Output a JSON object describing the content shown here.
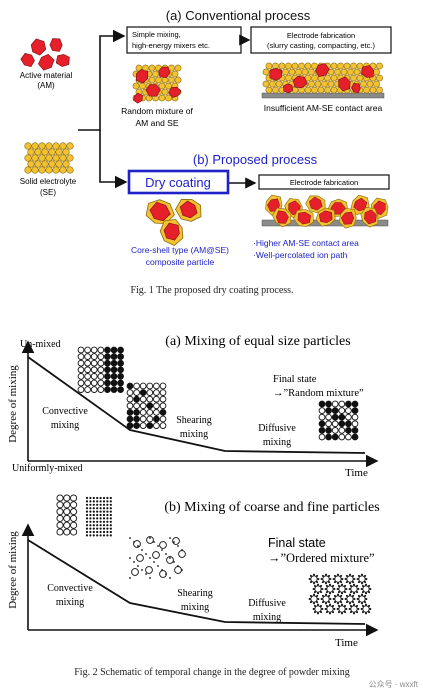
{
  "fig1": {
    "title_a": "(a) Conventional process",
    "title_b": "(b) Proposed process",
    "am_label_1": "Active material",
    "am_label_2": "(AM)",
    "se_label_1": "Solid electrolyte",
    "se_label_2": "(SE)",
    "mix_box_1": "Simple mixing,",
    "mix_box_2": "high-energy mixers etc.",
    "fab_box_1": "Electrode fabrication",
    "fab_box_2": "(slurry casting, compacting, etc.)",
    "random_mix_1": "Random mixture of",
    "random_mix_2": "AM and SE",
    "insufficient": "Insufficient AM-SE contact area",
    "dry_coating": "Dry coating",
    "fab_box_b": "Electrode fabrication",
    "coreshell_1": "Core-shell type (AM@SE)",
    "coreshell_2": "composite particle",
    "higher_1": "·Higher AM-SE contact area",
    "higher_2": "·Well-percolated ion path",
    "caption": "Fig. 1    The proposed dry coating process."
  },
  "fig2": {
    "title_a": "(a) Mixing of equal size particles",
    "title_b": "(b) Mixing of coarse and fine particles",
    "unmixed": "Un-mixed",
    "uniform": "Uniformly-mixed",
    "ylabel": "Degree of mixing",
    "xlabel": "Time",
    "convective_1": "Convective",
    "convective_2": "mixing",
    "shearing_1": "Shearing",
    "shearing_2": "mixing",
    "diffusive_1": "Diffusive",
    "diffusive_2": "mixing",
    "final_a_1": "Final state",
    "final_a_2": "→”Random mixture”",
    "final_b_1": "Final state",
    "final_b_2": "→”Ordered mixture”",
    "caption": "Fig. 2    Schematic of temporal change in the degree of powder mixing",
    "watermark": "公众号 · wxxft"
  },
  "colors": {
    "am_red": "#e5202a",
    "se_yellow": "#f2c230",
    "blue_accent": "#1e22c8",
    "collector": "#8a8a8a"
  }
}
